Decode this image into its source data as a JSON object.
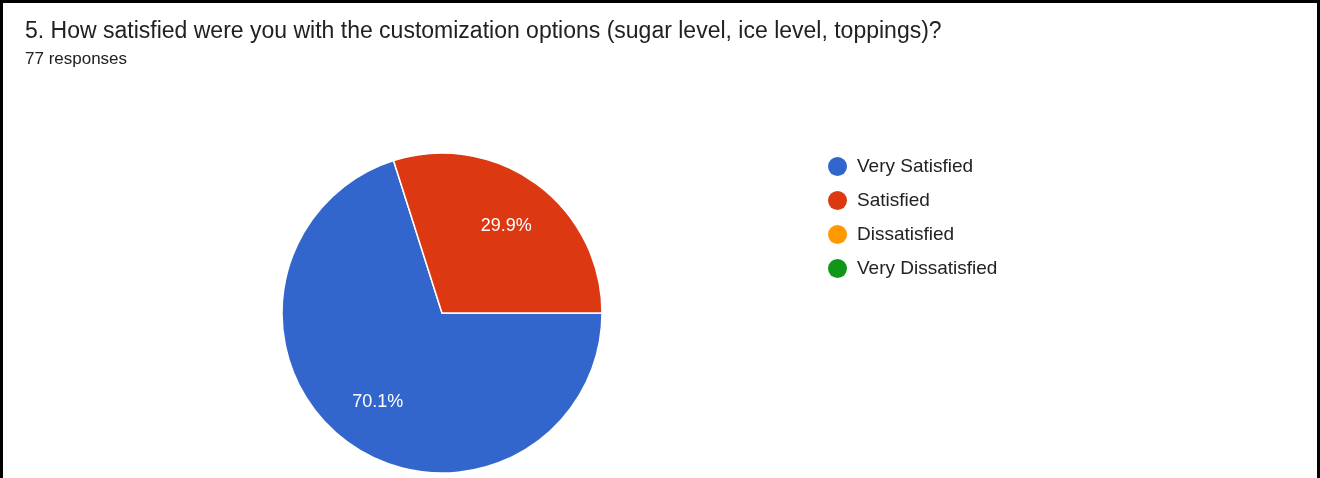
{
  "chart_data": {
    "type": "pie",
    "title": "5. How satisfied were you with the customization options (sugar level, ice level, toppings)?",
    "subtitle": "77 responses",
    "categories": [
      "Very Satisfied",
      "Satisfied",
      "Dissatisfied",
      "Very Dissatisfied"
    ],
    "values": [
      70.1,
      29.9,
      0,
      0
    ],
    "colors": [
      "#3366cc",
      "#dc3912",
      "#ff9900",
      "#109618"
    ],
    "value_labels": [
      "70.1%",
      "29.9%",
      null,
      null
    ],
    "legend": "top right"
  }
}
